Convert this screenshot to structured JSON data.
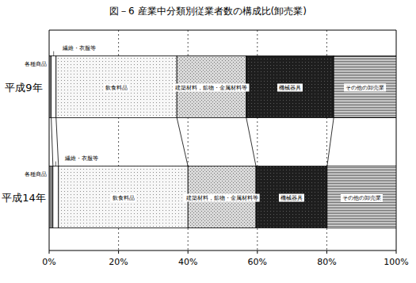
{
  "chart_data": {
    "type": "bar",
    "title": "図－6 産業中分類別従業者数の構成比(卸売業)",
    "orientation": "horizontal",
    "stacked": true,
    "grid": true,
    "categories": [
      "平成9年",
      "平成14年"
    ],
    "series": [
      {
        "name": "各種商品",
        "color": "#808080",
        "values": [
          0.6,
          1.1
        ]
      },
      {
        "name": "繊維・衣服等",
        "color": "#ffffff",
        "values": [
          1.4,
          1.6
        ]
      },
      {
        "name": "飲食料品",
        "color": "#f7f7f7",
        "values": [
          34.8,
          37.3
        ]
      },
      {
        "name": "建築材料，鉱物・金属材料等",
        "color": "#d9d9d9",
        "values": [
          20.0,
          19.6
        ]
      },
      {
        "name": "機械器具",
        "color": "#1e1e1e",
        "values": [
          25.2,
          20.5
        ]
      },
      {
        "name": "その他の卸売業",
        "color": "#ffffff",
        "values": [
          18.0,
          19.9
        ]
      }
    ],
    "xlim": [
      0,
      100
    ],
    "xticks": [
      {
        "value": 0,
        "label": "0%"
      },
      {
        "value": 20,
        "label": "20%"
      },
      {
        "value": 40,
        "label": "40%"
      },
      {
        "value": 60,
        "label": "60%"
      },
      {
        "value": 80,
        "label": "80%"
      },
      {
        "value": 100,
        "label": "100%"
      }
    ]
  }
}
